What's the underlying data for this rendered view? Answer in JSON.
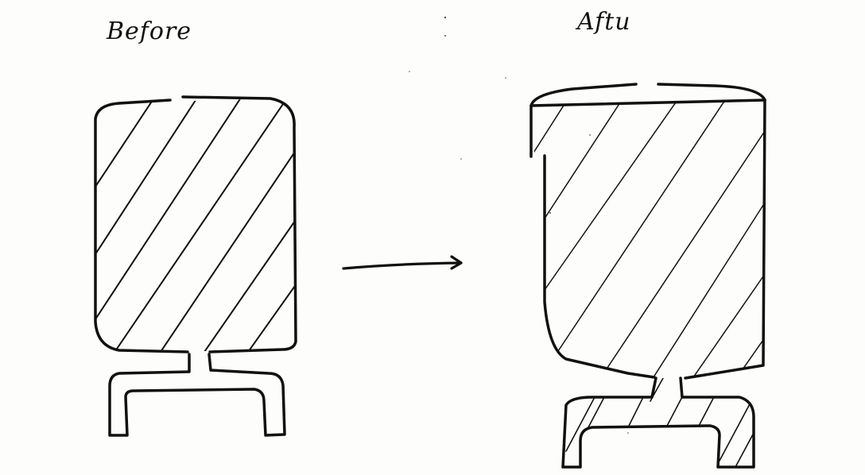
{
  "labels": {
    "before": "Before",
    "after": "Aftu"
  },
  "colors": {
    "ink": "#111111",
    "paper": "#fdfdfc"
  }
}
